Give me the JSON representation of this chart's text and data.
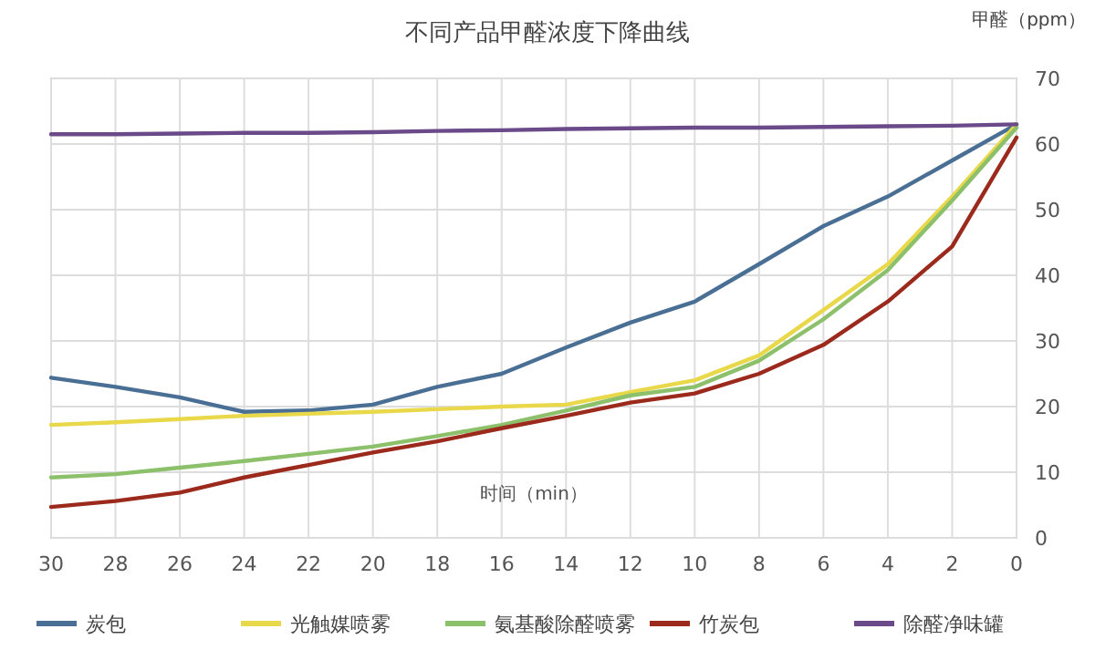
{
  "chart_data": {
    "type": "line",
    "title": "不同产品甲醛浓度下降曲线",
    "xlabel": "时间（min）",
    "ylabel": "甲醛（ppm）",
    "x": [
      30,
      28,
      26,
      24,
      22,
      20,
      18,
      16,
      14,
      12,
      10,
      8,
      6,
      4,
      2,
      0
    ],
    "xlim": [
      30,
      0
    ],
    "xticks": [
      30,
      28,
      26,
      24,
      22,
      20,
      18,
      16,
      14,
      12,
      10,
      8,
      6,
      4,
      2,
      0
    ],
    "ylim": [
      0,
      70
    ],
    "yticks": [
      0,
      10,
      20,
      30,
      40,
      50,
      60,
      70
    ],
    "grid": true,
    "legend": "bottom",
    "marker": "none",
    "series": [
      {
        "name": "炭包",
        "color": "#4a6f94",
        "values": [
          24.4,
          23,
          21.4,
          19.2,
          19.4,
          20.3,
          23,
          25,
          29,
          32.8,
          36,
          41.7,
          47.5,
          52,
          57.5,
          63
        ]
      },
      {
        "name": "光触媒喷雾",
        "color": "#e8d84a",
        "values": [
          17.2,
          17.6,
          18.1,
          18.6,
          18.9,
          19.2,
          19.6,
          20,
          20.3,
          22.2,
          24,
          27.8,
          34.7,
          41.7,
          52,
          63
        ]
      },
      {
        "name": "氨基酸除醛喷雾",
        "color": "#8cc06a",
        "values": [
          9.2,
          9.7,
          10.7,
          11.7,
          12.8,
          13.9,
          15.5,
          17.2,
          19.4,
          21.7,
          23,
          27,
          33.3,
          40.8,
          51.4,
          62.5
        ]
      },
      {
        "name": "竹炭包",
        "color": "#9b2a1c",
        "values": [
          4.7,
          5.6,
          6.9,
          9.2,
          11.1,
          13,
          14.7,
          16.7,
          18.6,
          20.6,
          22,
          25,
          29.4,
          36,
          44.4,
          61
        ]
      },
      {
        "name": "除醛净味罐",
        "color": "#6b4a8a",
        "values": [
          61.5,
          61.5,
          61.6,
          61.7,
          61.7,
          61.8,
          62,
          62.1,
          62.3,
          62.4,
          62.5,
          62.5,
          62.6,
          62.7,
          62.8,
          63
        ]
      }
    ]
  }
}
